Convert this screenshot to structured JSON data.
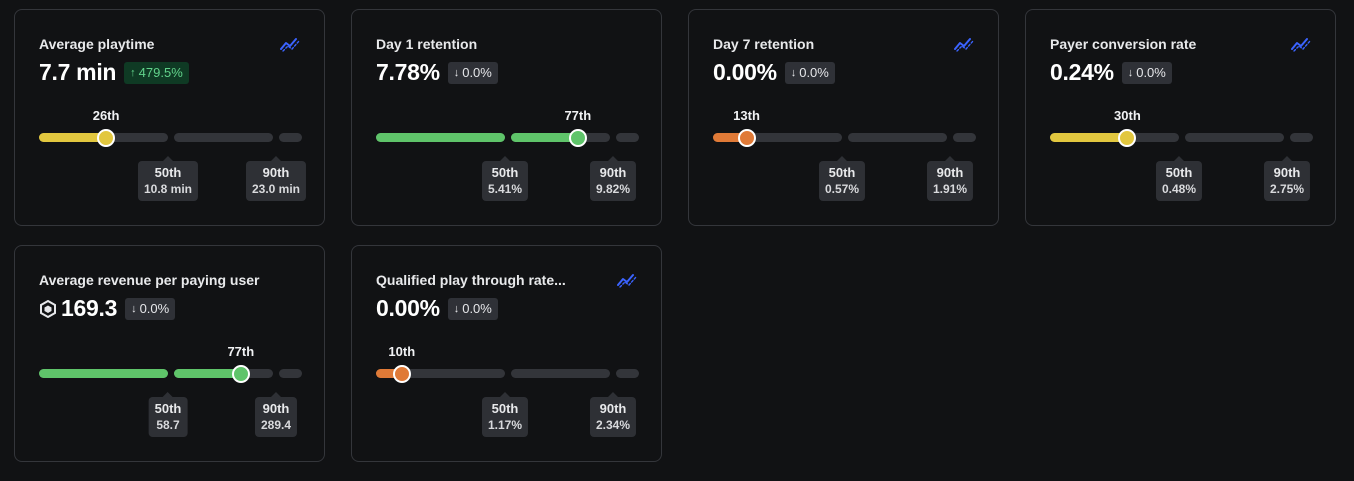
{
  "colors": {
    "background": "#111214",
    "card_border": "#34363b",
    "track": "#33353a",
    "yellow": "#e2c73f",
    "green": "#5fc46a",
    "orange": "#e07a37",
    "positive_badge_bg": "#0f3a24",
    "positive_badge_text": "#62d38b",
    "trend_icon": "#3b63ff"
  },
  "cards": [
    {
      "title": "Average playtime",
      "value": "7.7 min",
      "change": "479.5%",
      "change_direction": "up",
      "trend_icon": "trend-line-icon",
      "percentile_label": "26th",
      "percentile": 26,
      "color": "yellow",
      "p50_label": "50th",
      "p50_value": "10.8 min",
      "p90_label": "90th",
      "p90_value": "23.0 min"
    },
    {
      "title": "Day 1 retention",
      "value": "7.78%",
      "change": "0.0%",
      "change_direction": "down",
      "percentile_label": "77th",
      "percentile": 77,
      "color": "green",
      "p50_label": "50th",
      "p50_value": "5.41%",
      "p90_label": "90th",
      "p90_value": "9.82%"
    },
    {
      "title": "Day 7 retention",
      "value": "0.00%",
      "change": "0.0%",
      "change_direction": "down",
      "trend_icon": "trend-line-icon",
      "percentile_label": "13th",
      "percentile": 13,
      "color": "orange",
      "p50_label": "50th",
      "p50_value": "0.57%",
      "p90_label": "90th",
      "p90_value": "1.91%"
    },
    {
      "title": "Payer conversion rate",
      "value": "0.24%",
      "change": "0.0%",
      "change_direction": "down",
      "trend_icon": "trend-line-icon",
      "percentile_label": "30th",
      "percentile": 30,
      "color": "yellow",
      "p50_label": "50th",
      "p50_value": "0.48%",
      "p90_label": "90th",
      "p90_value": "2.75%"
    },
    {
      "title": "Average revenue per paying user",
      "value": "169.3",
      "value_icon": "robux-icon",
      "change": "0.0%",
      "change_direction": "down",
      "percentile_label": "77th",
      "percentile": 77,
      "color": "green",
      "p50_label": "50th",
      "p50_value": "58.7",
      "p90_label": "90th",
      "p90_value": "289.4"
    },
    {
      "title": "Qualified play through rate...",
      "value": "0.00%",
      "change": "0.0%",
      "change_direction": "down",
      "trend_icon": "trend-line-icon",
      "percentile_label": "10th",
      "percentile": 10,
      "color": "orange",
      "p50_label": "50th",
      "p50_value": "1.17%",
      "p90_label": "90th",
      "p90_value": "2.34%"
    }
  ]
}
